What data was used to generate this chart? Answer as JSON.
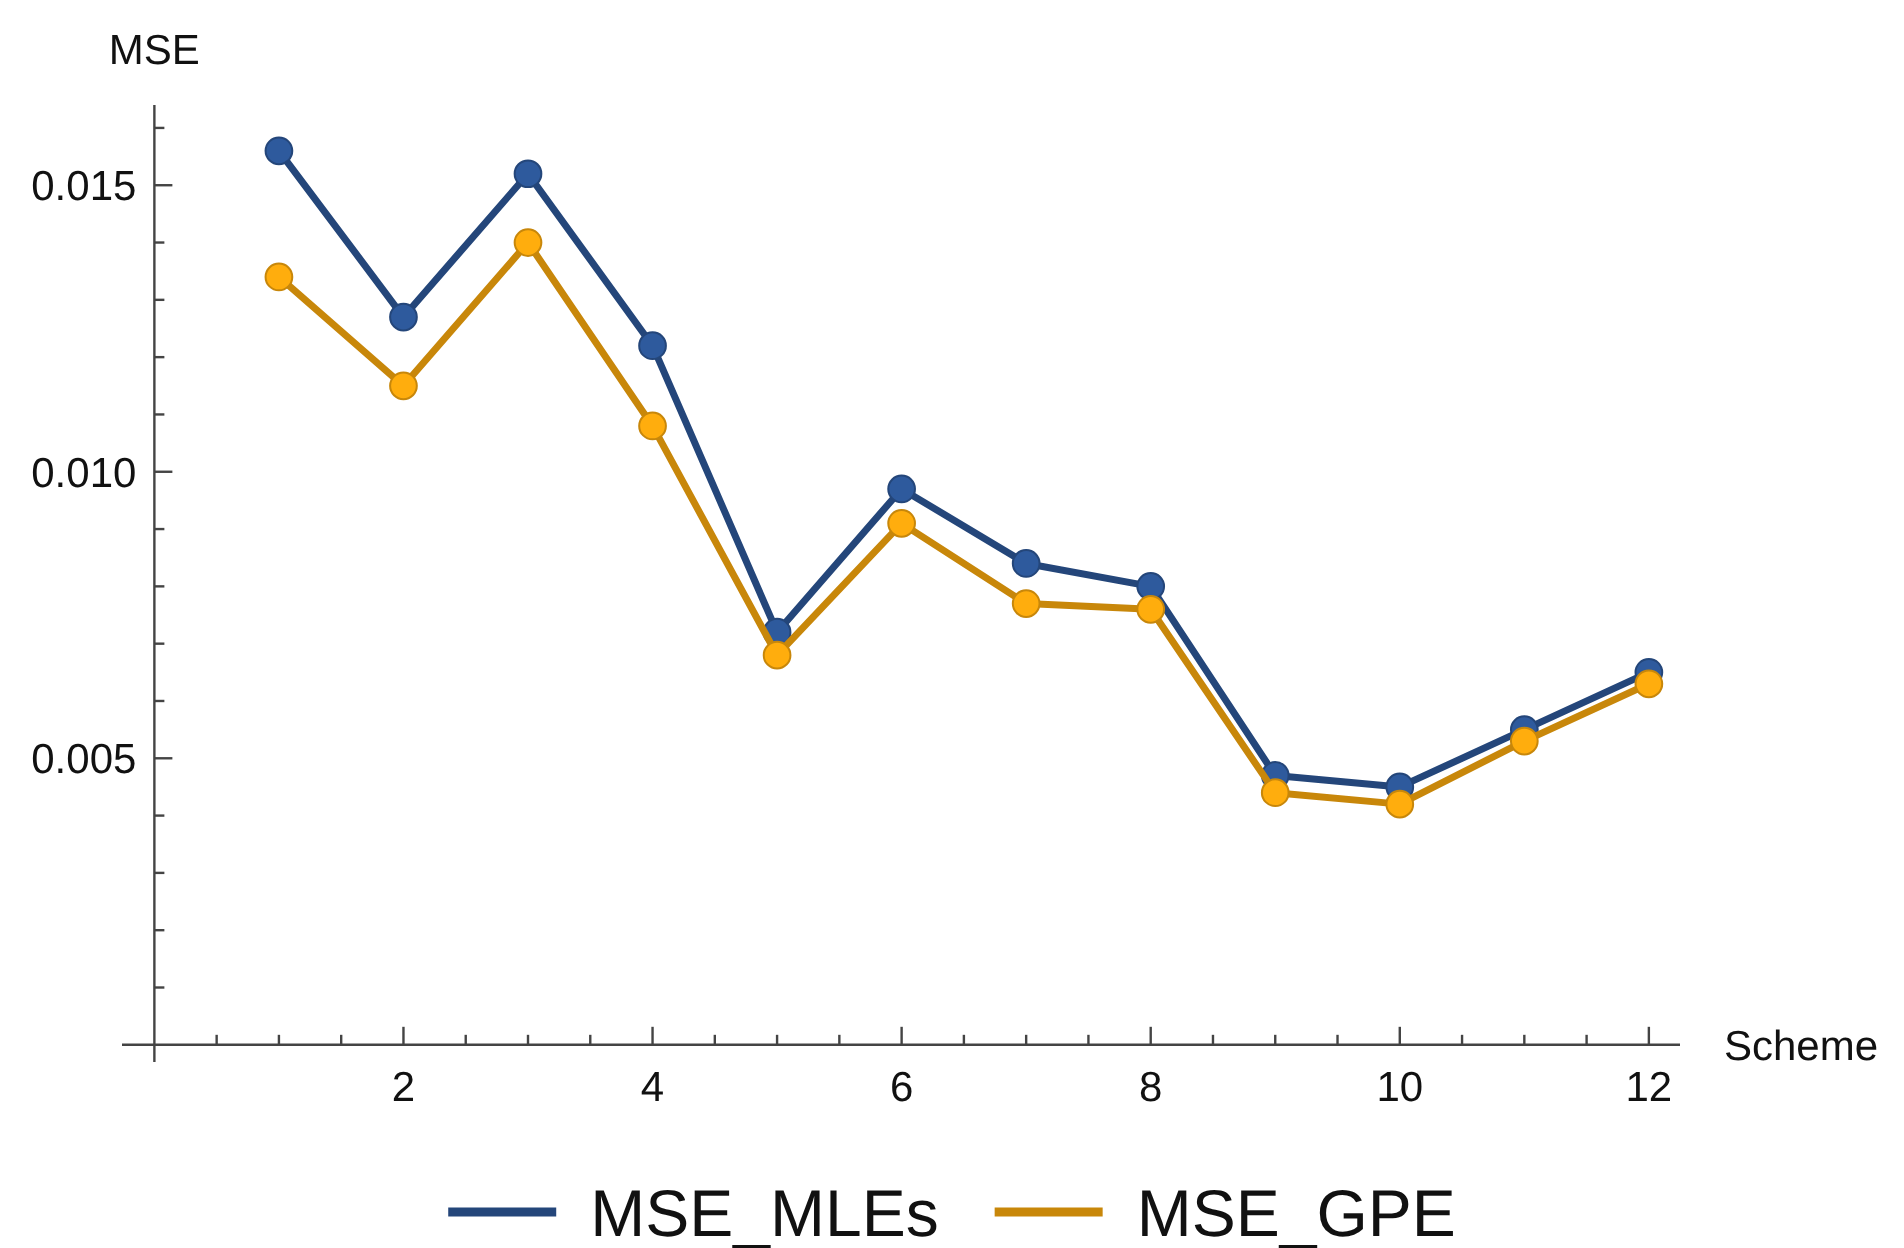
{
  "chart_data": {
    "type": "line",
    "xlabel": "Scheme",
    "ylabel": "MSE",
    "x": [
      1,
      2,
      3,
      4,
      5,
      6,
      7,
      8,
      9,
      10,
      11,
      12
    ],
    "series": [
      {
        "name": "MSE_MLEs",
        "color": "#24467a",
        "values": [
          0.0156,
          0.0127,
          0.0152,
          0.0122,
          0.0072,
          0.0097,
          0.0084,
          0.008,
          0.0047,
          0.0045,
          0.0055,
          0.0065
        ]
      },
      {
        "name": "MSE_GPE",
        "color": "#c8870a",
        "values": [
          0.0134,
          0.0115,
          0.014,
          0.0108,
          0.0068,
          0.0091,
          0.0077,
          0.0076,
          0.0044,
          0.0042,
          0.0053,
          0.0063
        ]
      }
    ],
    "xlim": [
      -0.26,
      12.25
    ],
    "ylim": [
      -0.0003,
      0.0164
    ],
    "xticks": [
      {
        "value": 0.5,
        "label": null
      },
      {
        "value": 1,
        "label": null
      },
      {
        "value": 1.5,
        "label": null
      },
      2,
      {
        "value": 2.5,
        "label": null
      },
      {
        "value": 3,
        "label": null
      },
      {
        "value": 3.5,
        "label": null
      },
      4,
      {
        "value": 4.5,
        "label": null
      },
      {
        "value": 5,
        "label": null
      },
      {
        "value": 5.5,
        "label": null
      },
      6,
      {
        "value": 6.5,
        "label": null
      },
      {
        "value": 7,
        "label": null
      },
      {
        "value": 7.5,
        "label": null
      },
      8,
      {
        "value": 8.5,
        "label": null
      },
      {
        "value": 9,
        "label": null
      },
      {
        "value": 9.5,
        "label": null
      },
      10,
      {
        "value": 10.5,
        "label": null
      },
      {
        "value": 11,
        "label": null
      },
      {
        "value": 11.5,
        "label": null
      },
      12
    ],
    "yticks": [
      {
        "value": 0.001,
        "label": null
      },
      {
        "value": 0.002,
        "label": null
      },
      {
        "value": 0.003,
        "label": null
      },
      {
        "value": 0.004,
        "label": null
      },
      0.005,
      {
        "value": 0.006,
        "label": null
      },
      {
        "value": 0.007,
        "label": null
      },
      {
        "value": 0.008,
        "label": null
      },
      {
        "value": 0.009,
        "label": null
      },
      {
        "value": 0.01,
        "label": "0.010"
      },
      {
        "value": 0.011,
        "label": null
      },
      {
        "value": 0.012,
        "label": null
      },
      {
        "value": 0.013,
        "label": null
      },
      {
        "value": 0.014,
        "label": null
      },
      0.015,
      {
        "value": 0.016,
        "label": null
      }
    ],
    "marker": "circle",
    "line_style": "solid",
    "legend": "bottom"
  }
}
